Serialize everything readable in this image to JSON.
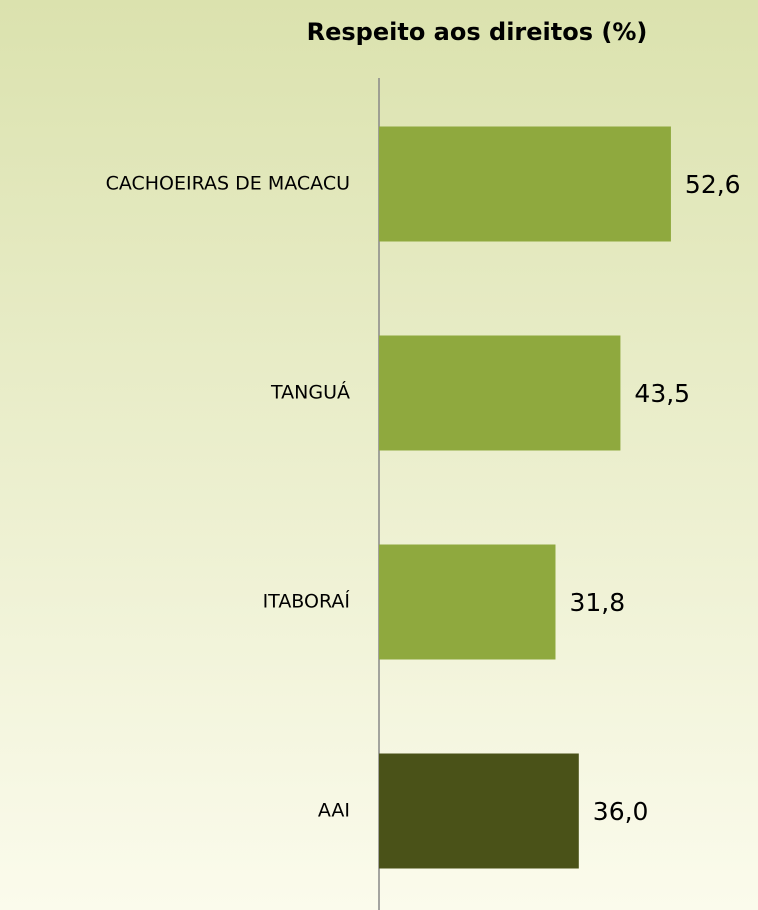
{
  "chart_data": {
    "type": "bar",
    "orientation": "horizontal",
    "title": "Respeito aos direitos (%)",
    "categories": [
      "CACHOEIRAS DE MACACU",
      "TANGUÁ",
      "ITABORAÍ",
      "AAI"
    ],
    "values": [
      52.6,
      43.5,
      31.8,
      36.0
    ],
    "value_labels": [
      "52,6",
      "43,5",
      "31,8",
      "36,0"
    ],
    "colors": [
      "#8fa93e",
      "#8fa93e",
      "#8fa93e",
      "#4a5218"
    ]
  }
}
